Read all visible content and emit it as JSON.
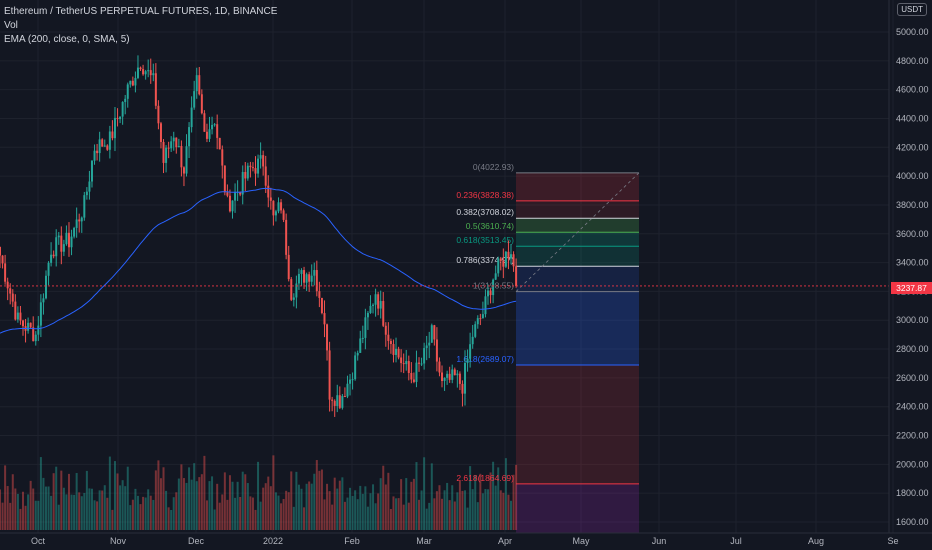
{
  "legend": {
    "title": "Ethereum / TetherUS PERPETUAL FUTURES, 1D, BINANCE",
    "vol": "Vol",
    "ema": "EMA (200, close, 0, SMA, 5)"
  },
  "price_axis": {
    "currency": "USDT",
    "current_price": "3237.87",
    "ticks": [
      "5000.00",
      "4800.00",
      "4600.00",
      "4400.00",
      "4200.00",
      "4000.00",
      "3800.00",
      "3600.00",
      "3400.00",
      "3200.00",
      "3000.00",
      "2800.00",
      "2600.00",
      "2400.00",
      "2200.00",
      "2000.00",
      "1800.00",
      "1600.00"
    ]
  },
  "time_axis": {
    "ticks": [
      "Oct",
      "Nov",
      "Dec",
      "2022",
      "Feb",
      "Mar",
      "Apr",
      "May",
      "Jun",
      "Jul",
      "Aug",
      "Se"
    ]
  },
  "fib_levels": [
    {
      "label": "0(4022.93)",
      "color": "#787b86"
    },
    {
      "label": "0.236(3828.38)",
      "color": "#f23645"
    },
    {
      "label": "0.382(3708.02)",
      "color": "#d1d4dc"
    },
    {
      "label": "0.5(3610.74)",
      "color": "#4caf50"
    },
    {
      "label": "0.618(3513.45)",
      "color": "#089981"
    },
    {
      "label": "0.786(3374.97)",
      "color": "#d1d4dc"
    },
    {
      "label": "1(3198.55)",
      "color": "#787b86"
    },
    {
      "label": "1.618(2689.07)",
      "color": "#2962ff"
    },
    {
      "label": "2.618(1864.69)",
      "color": "#f23645"
    }
  ],
  "colors": {
    "background": "#131722",
    "up": "#26a69a",
    "down": "#ef5350",
    "ema": "#2962ff",
    "price_line": "#f23645"
  },
  "chart_data": {
    "type": "candlestick",
    "symbol": "Ethereum / TetherUS PERPETUAL FUTURES",
    "interval": "1D",
    "ylim": [
      1550,
      5100
    ],
    "fib_retracement": {
      "levels": [
        0,
        0.236,
        0.382,
        0.5,
        0.618,
        0.786,
        1,
        1.618,
        2.618
      ],
      "prices": [
        4022.93,
        3828.38,
        3708.02,
        3610.74,
        3513.45,
        3374.97,
        3198.55,
        2689.07,
        1864.69
      ]
    },
    "anchors": [
      {
        "date": "Sep 15",
        "price": 3450
      },
      {
        "date": "Sep 22",
        "price": 3000
      },
      {
        "date": "Sep 29",
        "price": 2900
      },
      {
        "date": "Oct 5",
        "price": 3500
      },
      {
        "date": "Oct 12",
        "price": 3550
      },
      {
        "date": "Oct 18",
        "price": 3800
      },
      {
        "date": "Oct 22",
        "price": 4200
      },
      {
        "date": "Oct 28",
        "price": 4250
      },
      {
        "date": "Nov 4",
        "price": 4600
      },
      {
        "date": "Nov 9",
        "price": 4800
      },
      {
        "date": "Nov 14",
        "price": 4650
      },
      {
        "date": "Nov 18",
        "price": 4100
      },
      {
        "date": "Nov 22",
        "price": 4300
      },
      {
        "date": "Nov 26",
        "price": 4050
      },
      {
        "date": "Dec 1",
        "price": 4650
      },
      {
        "date": "Dec 4",
        "price": 4300
      },
      {
        "date": "Dec 8",
        "price": 4400
      },
      {
        "date": "Dec 13",
        "price": 3800
      },
      {
        "date": "Dec 17",
        "price": 3900
      },
      {
        "date": "Dec 22",
        "price": 4050
      },
      {
        "date": "Dec 27",
        "price": 4100
      },
      {
        "date": "Dec 31",
        "price": 3700
      },
      {
        "date": "Jan 3",
        "price": 3800
      },
      {
        "date": "Jan 7",
        "price": 3200
      },
      {
        "date": "Jan 11",
        "price": 3300
      },
      {
        "date": "Jan 16",
        "price": 3350
      },
      {
        "date": "Jan 20",
        "price": 3000
      },
      {
        "date": "Jan 22",
        "price": 2500
      },
      {
        "date": "Jan 26",
        "price": 2450
      },
      {
        "date": "Jan 30",
        "price": 2600
      },
      {
        "date": "Feb 4",
        "price": 2900
      },
      {
        "date": "Feb 9",
        "price": 3200
      },
      {
        "date": "Feb 14",
        "price": 2900
      },
      {
        "date": "Feb 18",
        "price": 2750
      },
      {
        "date": "Feb 23",
        "price": 2600
      },
      {
        "date": "Feb 27",
        "price": 2700
      },
      {
        "date": "Mar 3",
        "price": 2900
      },
      {
        "date": "Mar 7",
        "price": 2550
      },
      {
        "date": "Mar 12",
        "price": 2600
      },
      {
        "date": "Mar 15",
        "price": 2550
      },
      {
        "date": "Mar 19",
        "price": 2900
      },
      {
        "date": "Mar 23",
        "price": 3050
      },
      {
        "date": "Mar 27",
        "price": 3300
      },
      {
        "date": "Apr 1",
        "price": 3450
      },
      {
        "date": "Apr 3",
        "price": 3500
      },
      {
        "date": "Apr 5",
        "price": 3240
      }
    ],
    "last_close": 3237.87
  }
}
